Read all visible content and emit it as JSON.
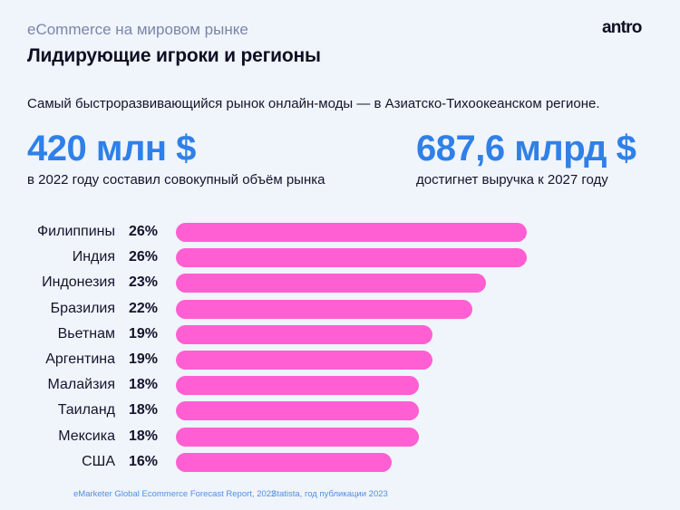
{
  "header": {
    "kicker": "eCommerce на мировом рынке",
    "title": "Лидирующие игроки и регионы",
    "logo": "antro"
  },
  "lead": "Самый быстроразвивающийся рынок онлайн-моды — в Азиатско-Тихоокеанском регионе.",
  "stats": [
    {
      "value": "420 млн $",
      "caption": "в 2022 году составил совокупный объём рынка"
    },
    {
      "value": "687,6 млрд $",
      "caption": "достигнет выручка к 2027 году"
    }
  ],
  "colors": {
    "background": "#f0f4fb",
    "accent_blue": "#2f80e8",
    "bar_pink": "#ff5fd2",
    "kicker_gray": "#7b86a8"
  },
  "sources": [
    "eMarketer Global Ecommerce Forecast Report, 2022",
    "Statista, год публикации 2023"
  ],
  "chart_data": {
    "type": "bar",
    "orientation": "horizontal",
    "title": "Лидирующие игроки и регионы",
    "categories": [
      "Филиппины",
      "Индия",
      "Индонезия",
      "Бразилия",
      "Вьетнам",
      "Аргентина",
      "Малайзия",
      "Таиланд",
      "Мексика",
      "США"
    ],
    "values": [
      26,
      26,
      23,
      22,
      19,
      19,
      18,
      18,
      18,
      16
    ],
    "value_labels": [
      "26%",
      "26%",
      "23%",
      "22%",
      "19%",
      "19%",
      "18%",
      "18%",
      "18%",
      "16%"
    ],
    "unit": "%",
    "xlabel": "",
    "ylabel": "",
    "grid": false,
    "legend": null
  }
}
